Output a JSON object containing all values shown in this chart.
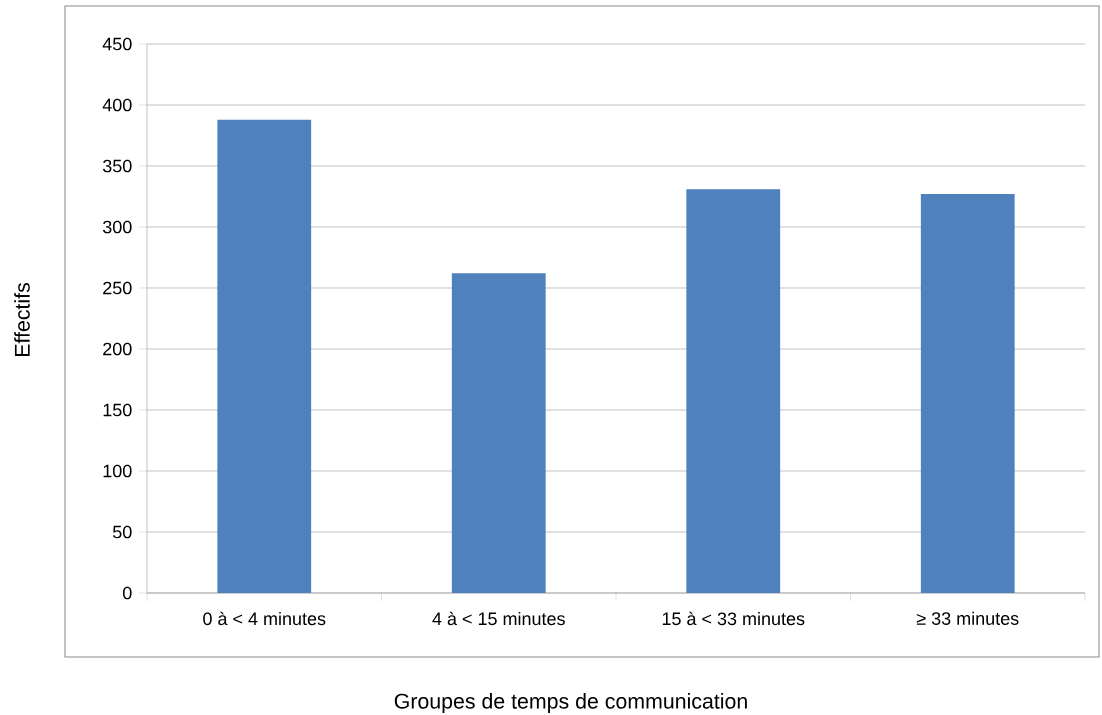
{
  "chart_data": {
    "type": "bar",
    "xlabel": "Groupes de temps de communication",
    "ylabel": "Effectifs",
    "categories": [
      "0 à < 4 minutes",
      "4 à < 15 minutes",
      "15 à < 33 minutes",
      "≥ 33 minutes"
    ],
    "values": [
      388,
      262,
      331,
      327
    ],
    "color": "#4f81bd",
    "ylim": [
      0,
      450
    ],
    "yticks": [
      0,
      50,
      100,
      150,
      200,
      250,
      300,
      350,
      400,
      450
    ],
    "grid": "y"
  }
}
